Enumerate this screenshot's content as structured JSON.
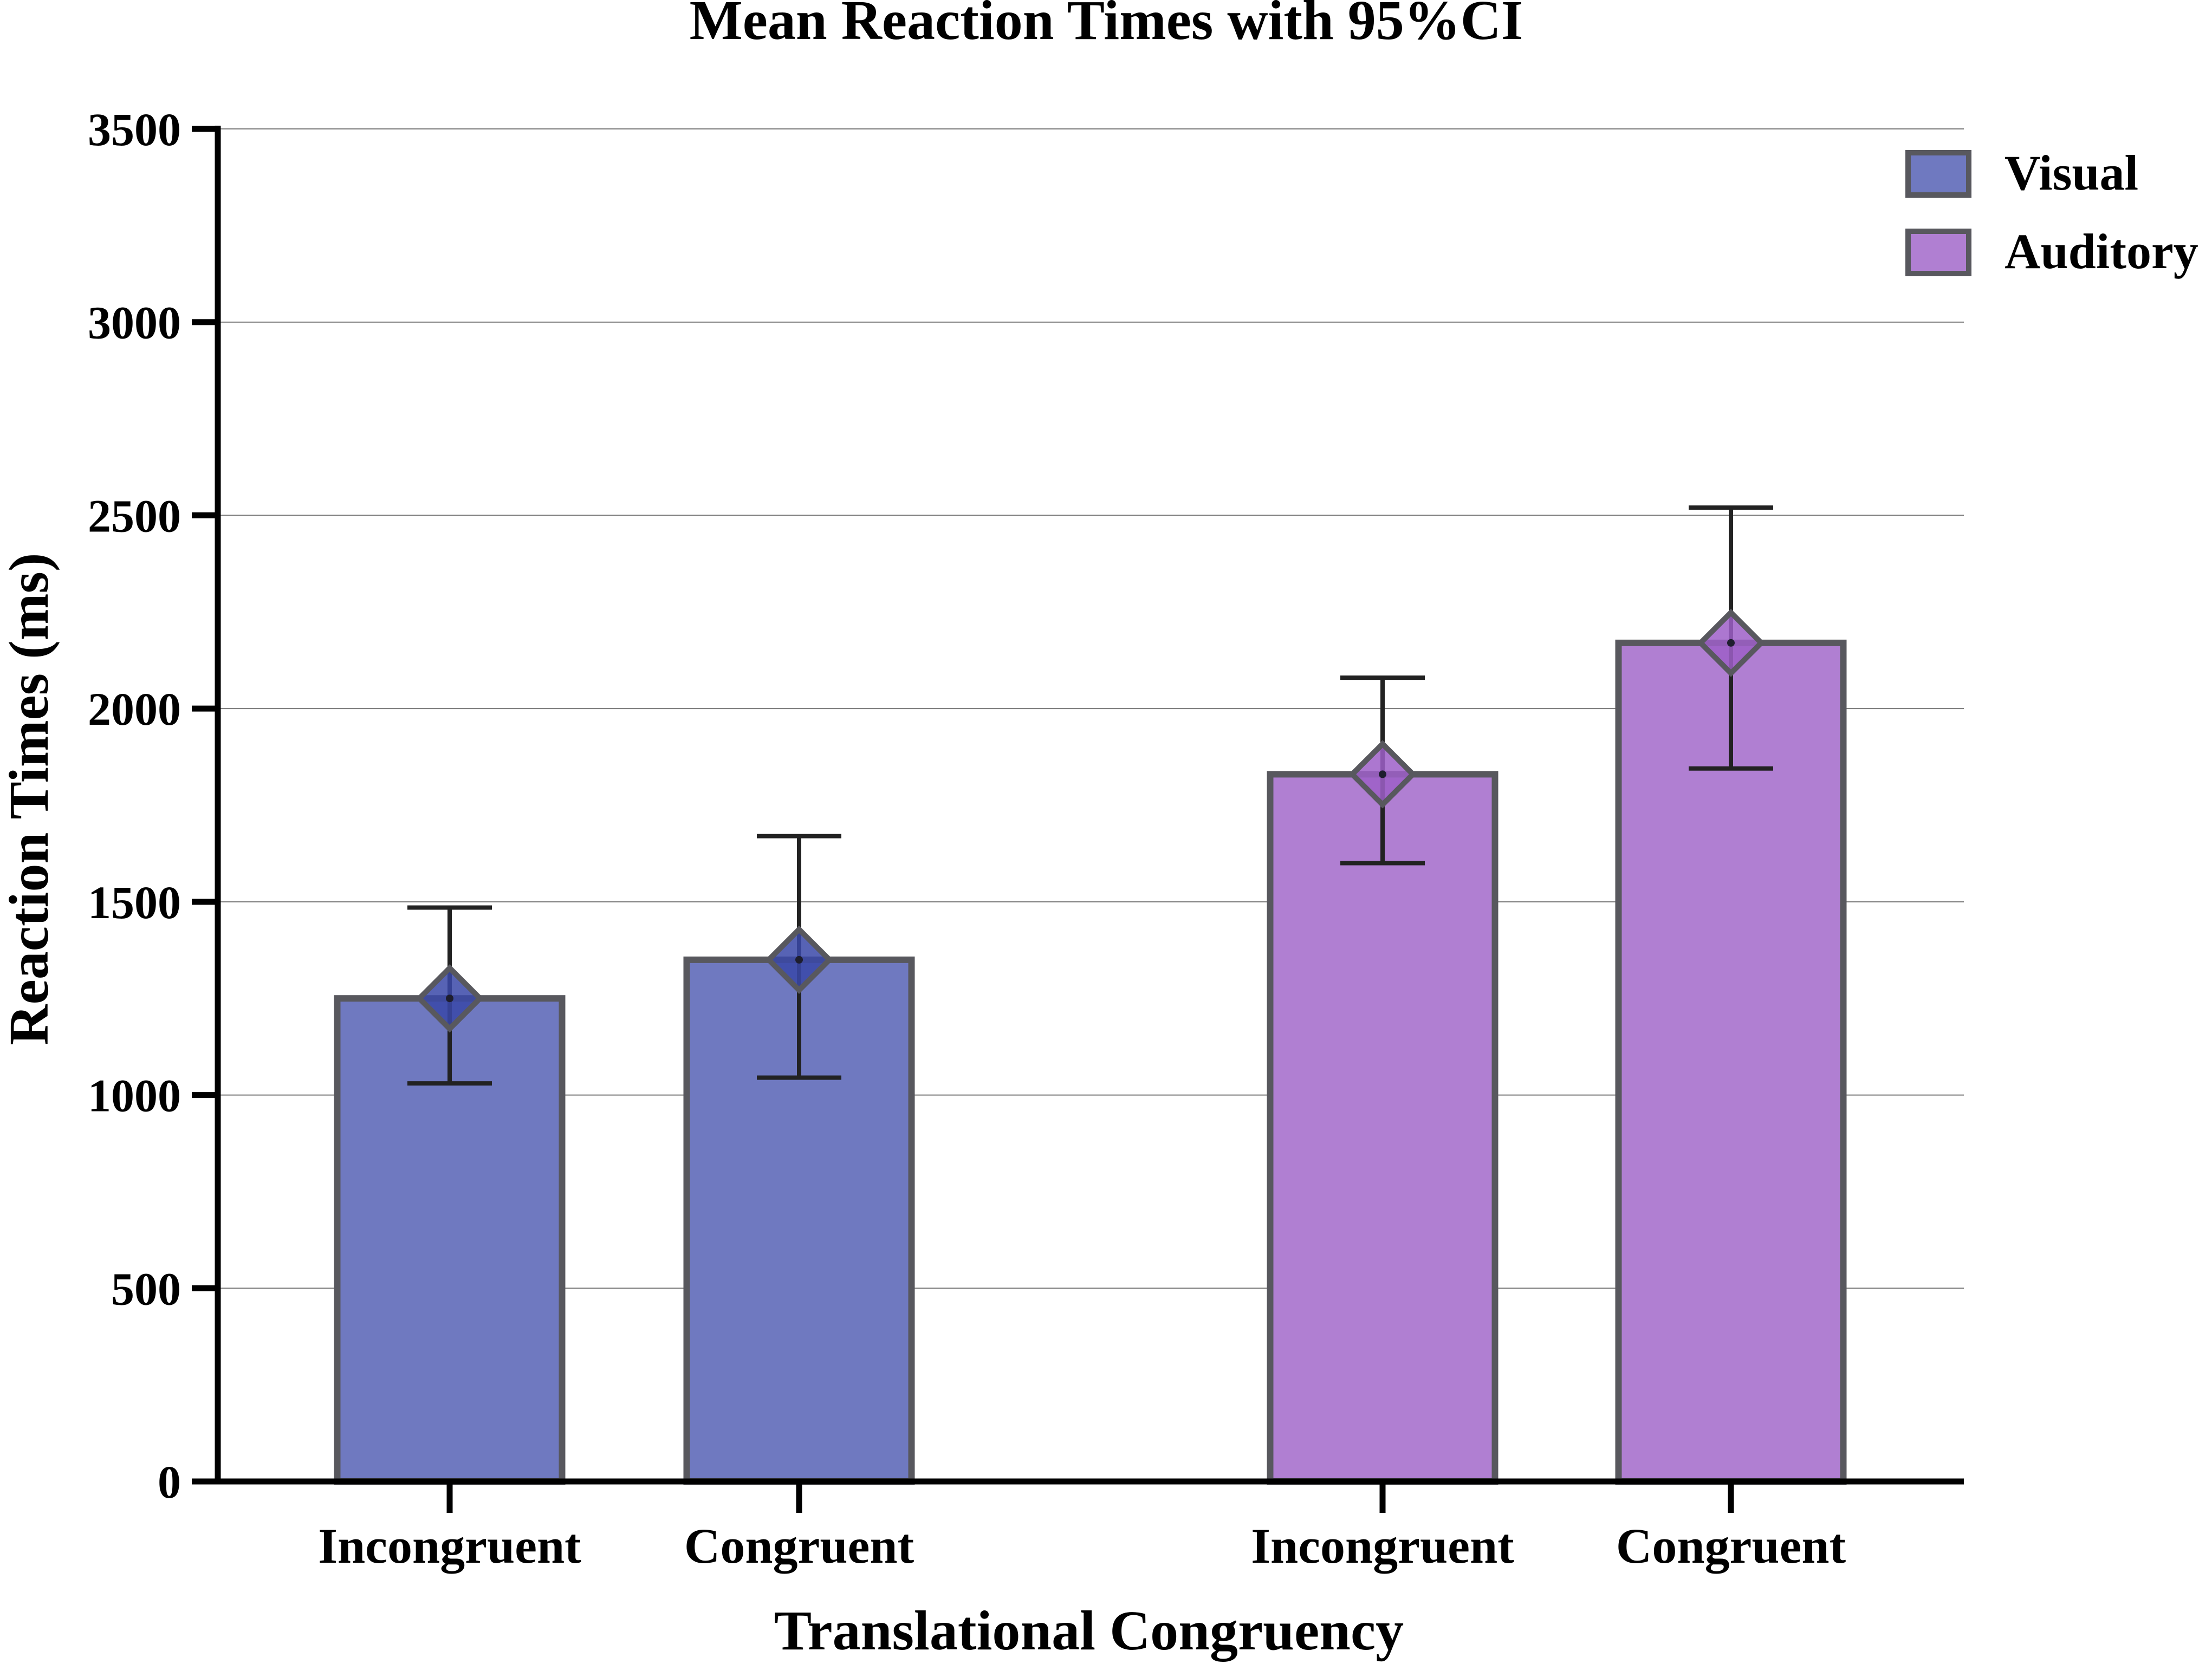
{
  "chart_data": {
    "type": "bar",
    "title": "Mean Reaction Times with 95%CI",
    "xlabel": "Translational Congruency",
    "ylabel": "Reaction Times (ms)",
    "ylim": [
      0,
      3500
    ],
    "yticks": [
      0,
      500,
      1000,
      1500,
      2000,
      2500,
      3000,
      3500
    ],
    "grid": true,
    "legend_position": "top-right",
    "series": [
      {
        "name": "Visual",
        "color": "#6f79c0",
        "marker_color": "#3a48a8",
        "categories": [
          "Incongruent",
          "Congruent"
        ],
        "values": [
          1250,
          1350
        ],
        "ci_low": [
          1030,
          1045
        ],
        "ci_high": [
          1485,
          1670
        ]
      },
      {
        "name": "Auditory",
        "color": "#b07fd2",
        "marker_color": "#9d5fc8",
        "categories": [
          "Incongruent",
          "Congruent"
        ],
        "values": [
          1830,
          2170
        ],
        "ci_low": [
          1600,
          1845
        ],
        "ci_high": [
          2080,
          2520
        ]
      }
    ]
  }
}
